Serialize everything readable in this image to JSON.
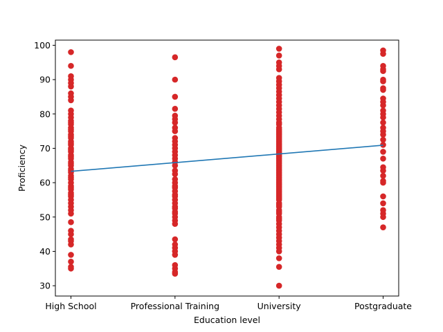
{
  "chart_data": {
    "type": "scatter",
    "title": "",
    "xlabel": "Education level",
    "ylabel": "Proficiency",
    "categories": [
      "High School",
      "Professional Training",
      "University",
      "Postgraduate"
    ],
    "ylim": [
      27,
      101.5
    ],
    "yticks": [
      30,
      40,
      50,
      60,
      70,
      80,
      90,
      100
    ],
    "grid": false,
    "legend": "none",
    "colors": {
      "points": "#d62728",
      "trend": "#1f77b4"
    },
    "series": [
      {
        "category": "High School",
        "values": [
          98,
          94,
          91,
          90,
          89,
          88,
          86,
          85,
          84,
          81,
          80,
          79,
          78,
          77.5,
          77,
          76,
          75.5,
          75,
          74,
          73.5,
          73,
          72,
          71.5,
          71,
          70,
          69.5,
          69,
          68,
          67.5,
          67,
          66,
          65.5,
          65,
          64,
          63.5,
          63,
          62,
          61.5,
          61,
          60,
          59,
          58.5,
          58,
          57,
          56.5,
          56,
          55,
          54,
          53,
          52,
          51,
          48.5,
          46,
          45,
          43.5,
          43,
          42,
          39,
          37,
          35.5,
          35
        ]
      },
      {
        "category": "Professional Training",
        "values": [
          96.5,
          90,
          85,
          81.5,
          79.5,
          78.5,
          77.5,
          76,
          75,
          73,
          72,
          71,
          70,
          69,
          68,
          67,
          66,
          65,
          63.5,
          62.5,
          61,
          60,
          59,
          58.5,
          57.5,
          56.5,
          56,
          55,
          54,
          53,
          52.5,
          51.5,
          51,
          50,
          49,
          48,
          43.5,
          42,
          41,
          40,
          39,
          36,
          35,
          34,
          33.5
        ]
      },
      {
        "category": "University",
        "values": [
          99,
          97,
          95,
          94,
          93,
          90.5,
          89.5,
          88.5,
          87.5,
          86.5,
          85.5,
          84.5,
          83.5,
          82.5,
          81.5,
          80.5,
          79.5,
          78.5,
          77.5,
          77,
          76,
          75.5,
          75,
          74.5,
          74,
          73.5,
          73,
          72.5,
          72,
          71.5,
          71,
          70.5,
          70,
          69.5,
          69,
          68.5,
          68,
          67.5,
          67,
          66.5,
          66,
          65.5,
          65,
          64.5,
          64,
          63.5,
          63,
          62.5,
          62,
          61.5,
          61,
          60.5,
          60,
          59.5,
          59,
          58.5,
          58,
          57.5,
          57,
          56.5,
          56,
          55.5,
          55,
          54,
          53.5,
          53,
          52,
          51.5,
          51,
          50,
          49.5,
          49,
          48,
          47,
          46,
          45,
          44,
          43,
          42,
          41,
          40,
          38,
          35.5,
          30
        ]
      },
      {
        "category": "Postgraduate",
        "values": [
          98.5,
          97.5,
          94,
          93,
          92.5,
          90,
          89.5,
          87.5,
          87,
          84.5,
          83.5,
          82.5,
          81,
          80,
          79,
          77.5,
          76,
          75,
          74,
          72.5,
          71,
          69,
          67,
          64.5,
          63.5,
          62,
          60.5,
          60,
          56,
          54,
          52,
          51,
          50,
          47
        ]
      }
    ],
    "trendline": {
      "start": 63.3,
      "end": 70.9
    }
  }
}
